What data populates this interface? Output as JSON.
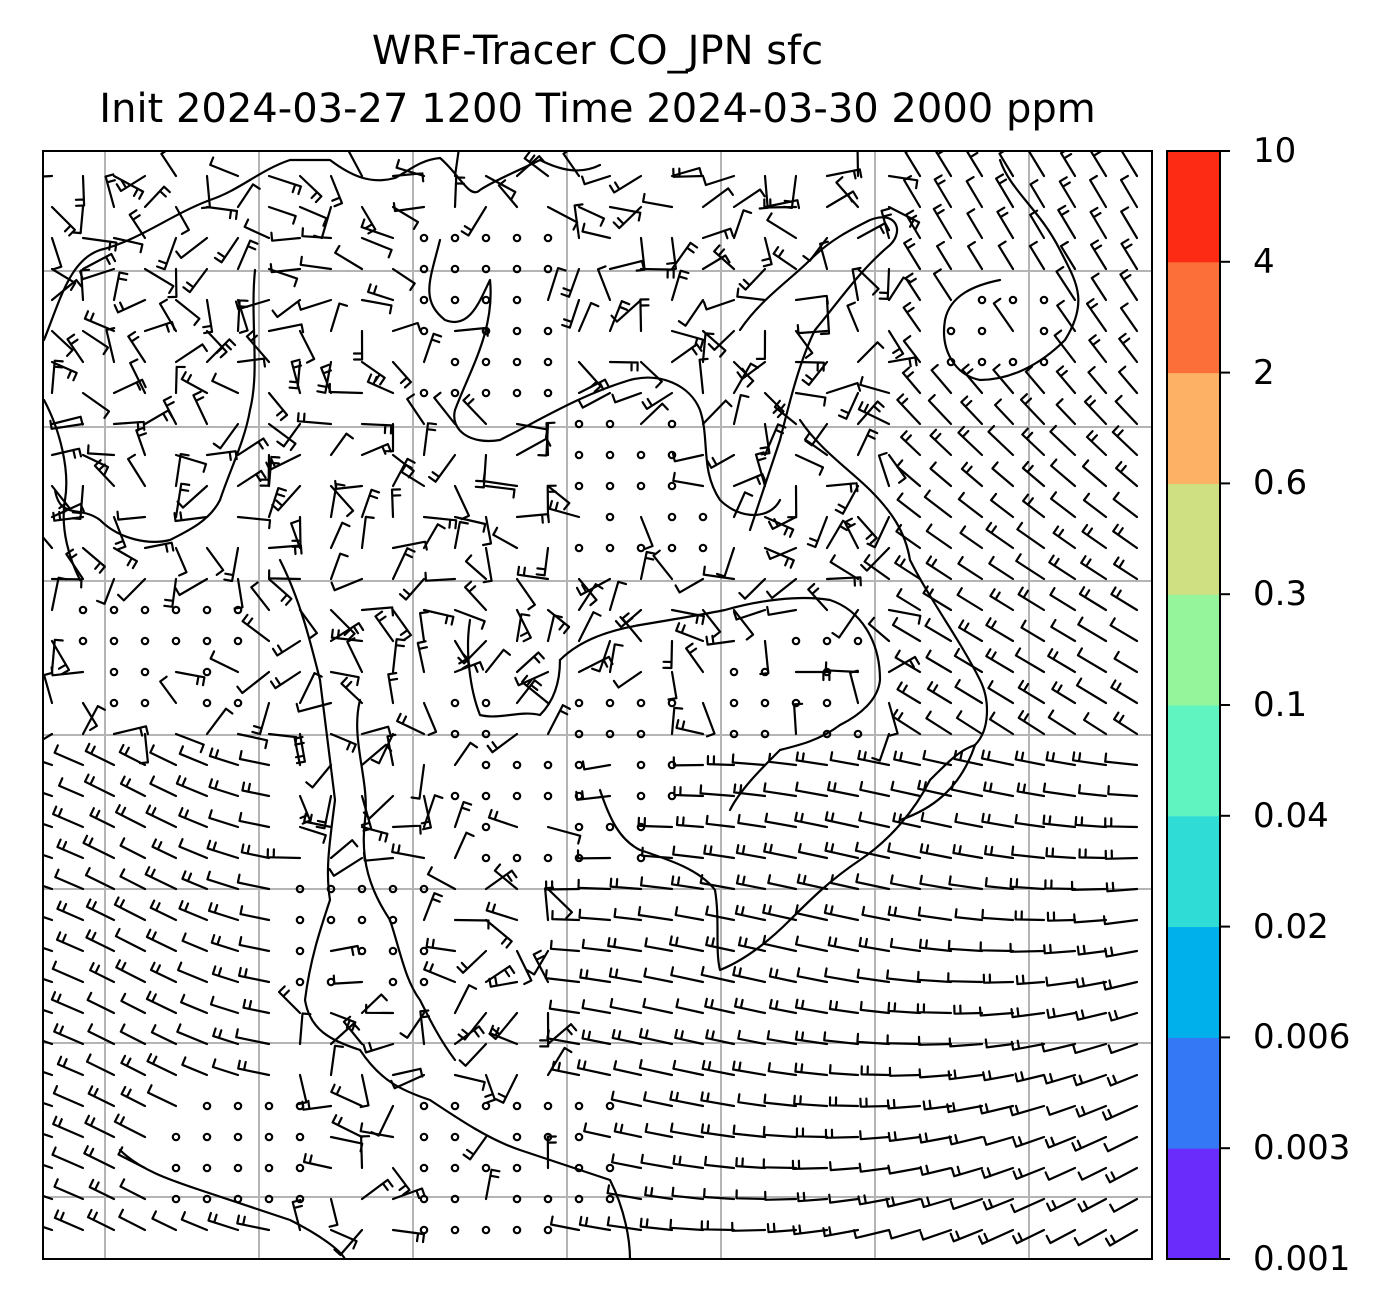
{
  "title": {
    "line1": "WRF-Tracer CO_JPN sfc",
    "line2": "Init 2024-03-27 1200 Time 2024-03-30 2000 ppm"
  },
  "colorbar": {
    "levels": [
      "0.001",
      "0.003",
      "0.006",
      "0.02",
      "0.04",
      "0.1",
      "0.3",
      "0.6",
      "2",
      "4",
      "10"
    ],
    "colors": [
      "#6a2cfa",
      "#3478f6",
      "#00b0ea",
      "#2fdcd6",
      "#60f5c0",
      "#94f59a",
      "#cfe082",
      "#fdb164",
      "#fd6f39",
      "#fd2a14"
    ]
  },
  "map": {
    "grid_color": "#b4b4b4",
    "coastline_color": "#000000",
    "barb_color": "#000000"
  }
}
